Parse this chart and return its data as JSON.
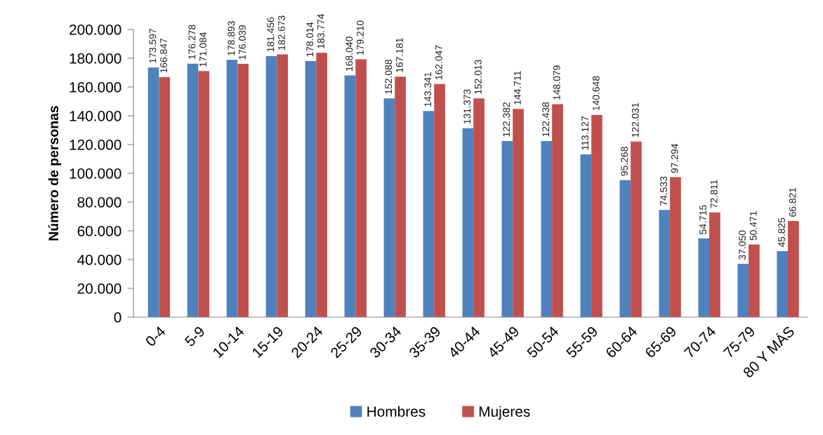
{
  "chart_data": {
    "type": "bar",
    "ylabel": "Número de personas",
    "categories": [
      "0-4",
      "5-9",
      "10-14",
      "15-19",
      "20-24",
      "25-29",
      "30-34",
      "35-39",
      "40-44",
      "45-49",
      "50-54",
      "55-59",
      "60-64",
      "65-69",
      "70-74",
      "75-79",
      "80 Y MÁS"
    ],
    "series": [
      {
        "name": "Hombres",
        "color": "#4f81bd",
        "values": [
          173597,
          176278,
          178893,
          181456,
          178014,
          168040,
          152088,
          143341,
          131373,
          122382,
          122438,
          113127,
          95268,
          74533,
          54715,
          37050,
          45825
        ],
        "value_labels": [
          "173.597",
          "176.278",
          "178.893",
          "181.456",
          "178.014",
          "168.040",
          "152.088",
          "143.341",
          "131.373",
          "122.382",
          "122.438",
          "113.127",
          "95.268",
          "74.533",
          "54.715",
          "37.050",
          "45.825"
        ]
      },
      {
        "name": "Mujeres",
        "color": "#c0504d",
        "values": [
          166847,
          171084,
          176039,
          182673,
          183774,
          179210,
          167181,
          162047,
          152013,
          144711,
          148079,
          140648,
          122031,
          97294,
          72811,
          50471,
          66821
        ],
        "value_labels": [
          "166.847",
          "171.084",
          "176.039",
          "182.673",
          "183.774",
          "179.210",
          "167.181",
          "162.047",
          "152.013",
          "144.711",
          "148.079",
          "140.648",
          "122.031",
          "97.294",
          "72.811",
          "50.471",
          "66.821"
        ]
      }
    ],
    "ylim": [
      0,
      200000
    ],
    "yticks": [
      0,
      {
        "value": 20000,
        "label": "20.000"
      },
      {
        "value": 40000,
        "label": "40.000"
      },
      {
        "value": 60000,
        "label": "60.000"
      },
      {
        "value": 80000,
        "label": "80.000"
      },
      {
        "value": 100000,
        "label": "100.000"
      },
      {
        "value": 120000,
        "label": "120.000"
      },
      {
        "value": 140000,
        "label": "140.000"
      },
      {
        "value": 160000,
        "label": "160.000"
      },
      {
        "value": 180000,
        "label": "180.000"
      },
      {
        "value": 200000,
        "label": "200.000"
      }
    ],
    "legend": "bottom"
  }
}
